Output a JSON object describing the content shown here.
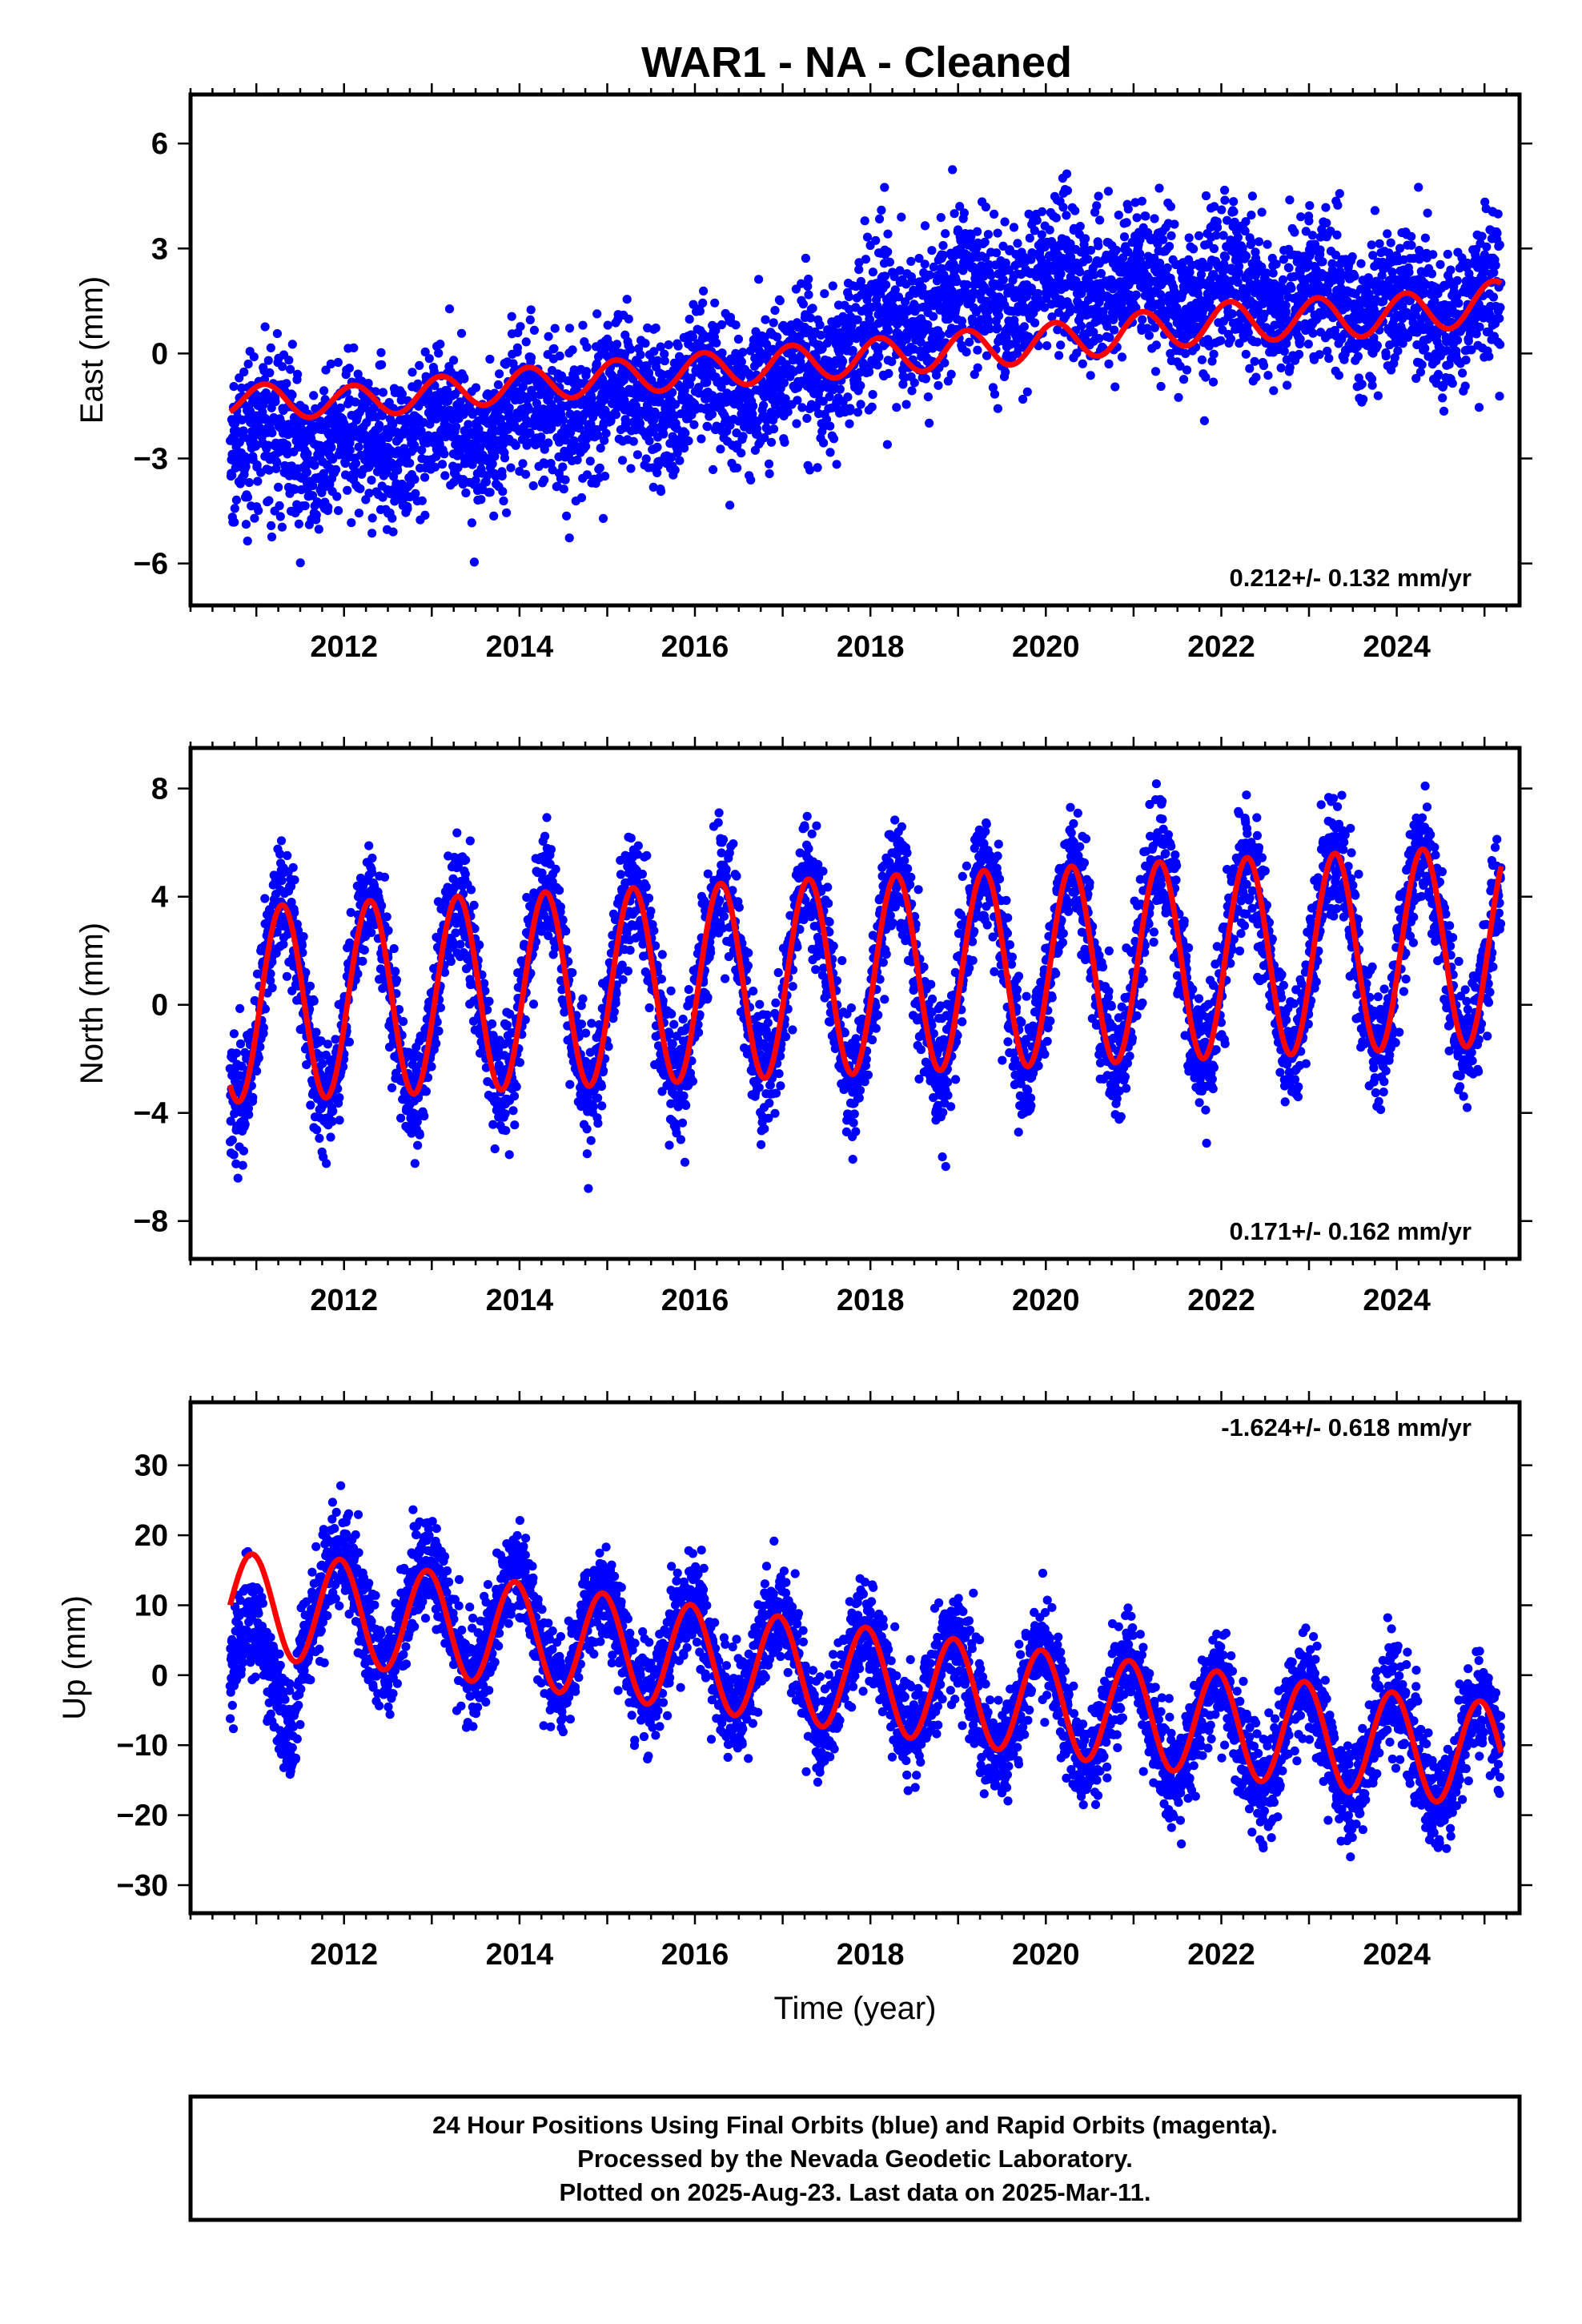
{
  "title": "WAR1  - NA - Cleaned",
  "colors": {
    "points": "#0000ff",
    "fit": "#ff0000",
    "frame": "#000000"
  },
  "chart_data": [
    {
      "type": "scatter",
      "component": "east",
      "ylabel": "East (mm)",
      "xlabel": "",
      "rate_label": "0.212+/- 0.132 mm/yr",
      "xlim": [
        2010.25,
        2025.4
      ],
      "ylim": [
        -7.2,
        7.4
      ],
      "yticks": [
        -6,
        -3,
        0,
        3,
        6
      ],
      "yticklabels": [
        "−6",
        "−3",
        "0",
        "3",
        "6"
      ],
      "xticks": [
        2012,
        2014,
        2016,
        2018,
        2020,
        2022,
        2024
      ],
      "xticklabels": [
        "2012",
        "2014",
        "2016",
        "2018",
        "2020",
        "2022",
        "2024"
      ],
      "data_span": [
        2010.7,
        2025.19
      ],
      "trend_points": {
        "x": [
          2010.7,
          2012,
          2014,
          2016,
          2017.2,
          2018,
          2019,
          2020,
          2021,
          2022,
          2023,
          2024,
          2025.19
        ],
        "y": [
          -2.6,
          -2.6,
          -1.9,
          -1.0,
          -0.7,
          0.7,
          1.5,
          1.9,
          2.0,
          1.8,
          1.5,
          1.3,
          1.5
        ]
      },
      "fit_points": {
        "x": [
          2010.7,
          2012,
          2014,
          2016,
          2018,
          2020,
          2022,
          2024,
          2025.19
        ],
        "y": [
          -1.3,
          -1.4,
          -0.9,
          -0.5,
          -0.1,
          0.3,
          0.9,
          1.1,
          1.5
        ]
      },
      "seasonal_amplitude": {
        "x": [
          2010.7,
          2016,
          2020,
          2025.19
        ],
        "y": [
          0.45,
          0.5,
          0.55,
          0.6
        ]
      },
      "seasonal_phase": 0.1,
      "scatter_sd": 1.05
    },
    {
      "type": "scatter",
      "component": "north",
      "ylabel": "North (mm)",
      "xlabel": "",
      "rate_label": "0.171+/- 0.162 mm/yr",
      "xlim": [
        2010.25,
        2025.4
      ],
      "ylim": [
        -9.4,
        9.5
      ],
      "yticks": [
        -8,
        -4,
        0,
        4,
        8
      ],
      "yticklabels": [
        "−8",
        "−4",
        "0",
        "4",
        "8"
      ],
      "xticks": [
        2012,
        2014,
        2016,
        2018,
        2020,
        2022,
        2024
      ],
      "xticklabels": [
        "2012",
        "2014",
        "2016",
        "2018",
        "2020",
        "2022",
        "2024"
      ],
      "data_span": [
        2010.7,
        2025.19
      ],
      "trend_points": {
        "x": [
          2010.7,
          2025.19
        ],
        "y": [
          0.0,
          2.2
        ]
      },
      "fit_points": {
        "x": [
          2010.7,
          2025.19
        ],
        "y": [
          0.0,
          2.2
        ]
      },
      "seasonal_amplitude": {
        "x": [
          2010.7,
          2025.19
        ],
        "y": [
          3.6,
          3.7
        ]
      },
      "seasonal_phase": 0.295,
      "scatter_sd": 1.1
    },
    {
      "type": "scatter",
      "component": "up",
      "ylabel": "Up (mm)",
      "xlabel": "Time (year)",
      "rate_label": "-1.624+/- 0.618 mm/yr",
      "xlim": [
        2010.25,
        2025.4
      ],
      "ylim": [
        -34,
        39
      ],
      "yticks": [
        -30,
        -20,
        -10,
        0,
        10,
        20,
        30
      ],
      "yticklabels": [
        "−30",
        "−20",
        "−10",
        "0",
        "10",
        "20",
        "30"
      ],
      "xticks": [
        2012,
        2014,
        2016,
        2018,
        2020,
        2022,
        2024
      ],
      "xticklabels": [
        "2012",
        "2014",
        "2016",
        "2018",
        "2020",
        "2022",
        "2024"
      ],
      "data_span": [
        2010.7,
        2025.19
      ],
      "trend_points": {
        "x": [
          2010.7,
          2011.4,
          2011.5,
          2012,
          2016,
          2020,
          2024,
          2025.19
        ],
        "y": [
          0.0,
          -2.0,
          10.0,
          10.0,
          3.0,
          -4.5,
          -10.5,
          -12.0
        ]
      },
      "fit_points": {
        "x": [
          2010.7,
          2012,
          2016,
          2020,
          2024,
          2025.19
        ],
        "y": [
          10.0,
          9.0,
          2.5,
          -4.0,
          -10.0,
          -11.5
        ]
      },
      "seasonal_amplitude": {
        "x": [
          2010.7,
          2025.19
        ],
        "y": [
          7.5,
          7.5
        ]
      },
      "seasonal_phase": 0.95,
      "scatter_sd": 3.6
    }
  ],
  "footer": {
    "line1": "24 Hour Positions Using Final Orbits (blue) and Rapid Orbits (magenta).",
    "line2": "Processed by the Nevada Geodetic Laboratory.",
    "line3": "Plotted on 2025-Aug-23. Last data on 2025-Mar-11."
  }
}
